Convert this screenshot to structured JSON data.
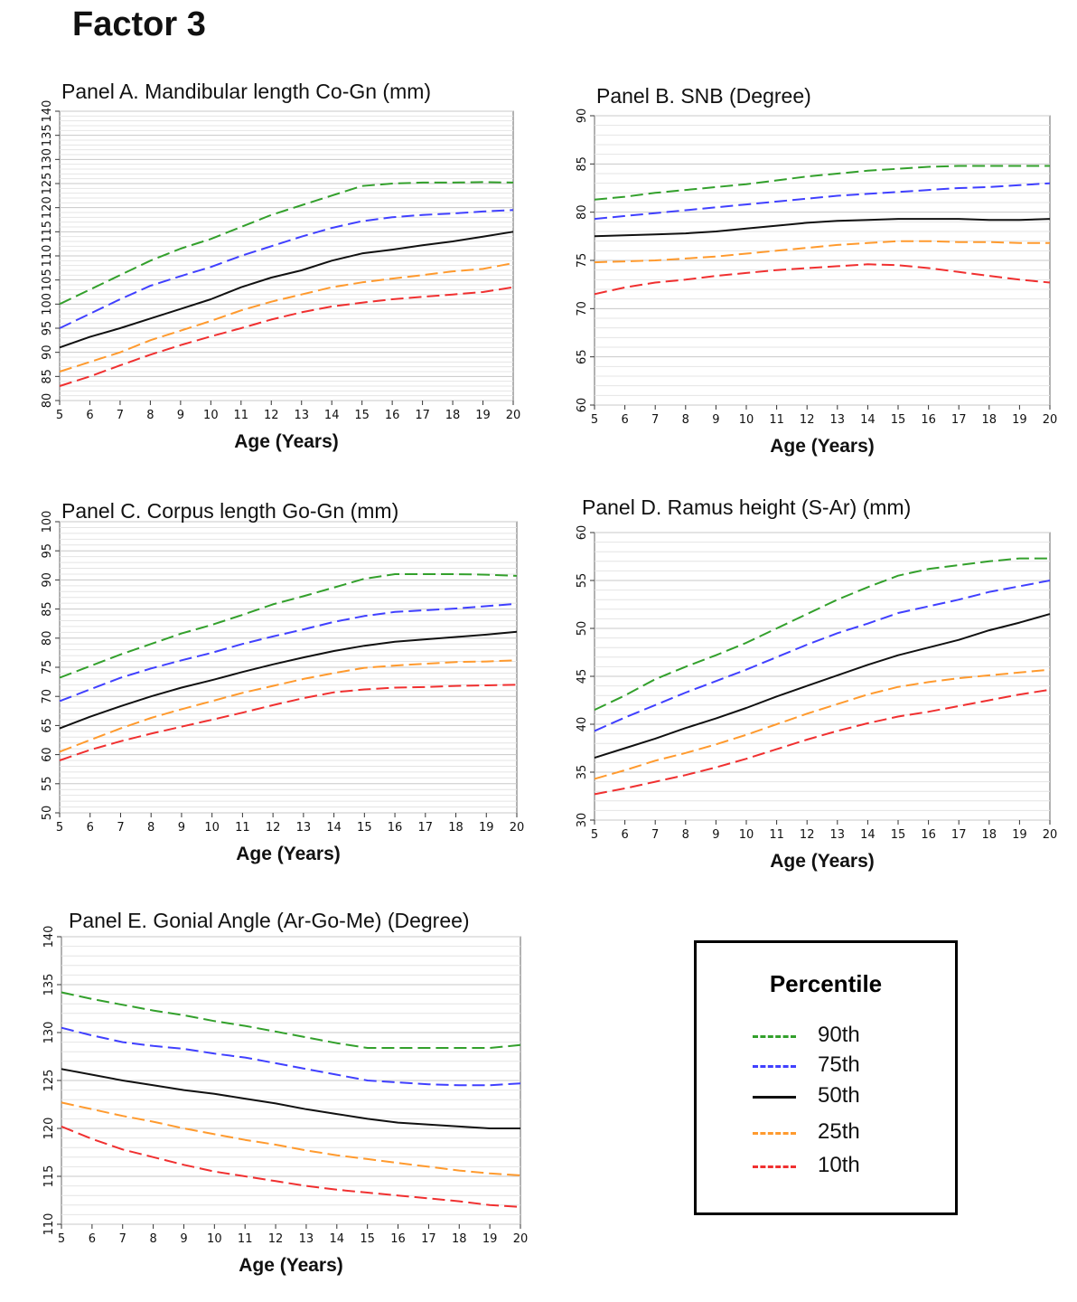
{
  "figure_title": "Factor 3",
  "legend": {
    "title": "Percentile",
    "items": [
      {
        "label": "90th",
        "color": "#33a02c",
        "dash": "dashed"
      },
      {
        "label": "75th",
        "color": "#4040ff",
        "dash": "dashed"
      },
      {
        "label": "50th",
        "color": "#111111",
        "dash": "solid"
      },
      {
        "label": "25th",
        "color": "#ff9a2e",
        "dash": "dashed"
      },
      {
        "label": "10th",
        "color": "#f03030",
        "dash": "dashed"
      }
    ]
  },
  "chart_data": [
    {
      "type": "line",
      "title": "Panel A. Mandibular length Co-Gn (mm)",
      "xlabel": "Age (Years)",
      "ylabel": "",
      "x": [
        5,
        6,
        7,
        8,
        9,
        10,
        11,
        12,
        13,
        14,
        15,
        16,
        17,
        18,
        19,
        20
      ],
      "xlim": [
        5,
        20
      ],
      "ylim": [
        80,
        140
      ],
      "yticks": [
        80,
        85,
        90,
        95,
        100,
        105,
        110,
        115,
        120,
        125,
        130,
        135,
        140
      ],
      "grid": true,
      "series": [
        {
          "name": "90th",
          "values": [
            100,
            103,
            106,
            109,
            111.5,
            113.5,
            116,
            118.5,
            120.5,
            122.5,
            124.5,
            125,
            125.2,
            125.2,
            125.3,
            125.2
          ]
        },
        {
          "name": "75th",
          "values": [
            95,
            98,
            101,
            103.8,
            105.8,
            107.7,
            110,
            112,
            114,
            115.8,
            117.2,
            118,
            118.5,
            118.8,
            119.2,
            119.5
          ]
        },
        {
          "name": "50th",
          "values": [
            91,
            93.2,
            95,
            97,
            99,
            101,
            103.5,
            105.5,
            107,
            109,
            110.5,
            111.3,
            112.2,
            113,
            114,
            115
          ]
        },
        {
          "name": "25th",
          "values": [
            86,
            88,
            90,
            92.5,
            94.5,
            96.5,
            98.7,
            100.5,
            102,
            103.5,
            104.5,
            105.3,
            106,
            106.8,
            107.3,
            108.5
          ]
        },
        {
          "name": "10th",
          "values": [
            83,
            85,
            87.3,
            89.5,
            91.5,
            93.3,
            95,
            96.8,
            98.3,
            99.5,
            100.3,
            101,
            101.5,
            102,
            102.5,
            103.5
          ]
        }
      ]
    },
    {
      "type": "line",
      "title": "Panel B. SNB (Degree)",
      "xlabel": "Age (Years)",
      "ylabel": "",
      "x": [
        5,
        6,
        7,
        8,
        9,
        10,
        11,
        12,
        13,
        14,
        15,
        16,
        17,
        18,
        19,
        20
      ],
      "xlim": [
        5,
        20
      ],
      "ylim": [
        60,
        90
      ],
      "yticks": [
        60,
        65,
        70,
        75,
        80,
        85,
        90
      ],
      "grid": true,
      "series": [
        {
          "name": "90th",
          "values": [
            81.3,
            81.6,
            82,
            82.3,
            82.6,
            82.9,
            83.3,
            83.7,
            84,
            84.3,
            84.5,
            84.7,
            84.8,
            84.8,
            84.8,
            84.8
          ]
        },
        {
          "name": "75th",
          "values": [
            79.3,
            79.6,
            79.9,
            80.2,
            80.5,
            80.8,
            81.1,
            81.4,
            81.7,
            81.9,
            82.1,
            82.3,
            82.5,
            82.6,
            82.8,
            83
          ]
        },
        {
          "name": "50th",
          "values": [
            77.5,
            77.6,
            77.7,
            77.8,
            78,
            78.3,
            78.6,
            78.9,
            79.1,
            79.2,
            79.3,
            79.3,
            79.3,
            79.2,
            79.2,
            79.3
          ]
        },
        {
          "name": "25th",
          "values": [
            74.8,
            74.9,
            75,
            75.2,
            75.4,
            75.7,
            76,
            76.3,
            76.6,
            76.8,
            77,
            77,
            76.9,
            76.9,
            76.8,
            76.8
          ]
        },
        {
          "name": "10th",
          "values": [
            71.5,
            72.2,
            72.7,
            73,
            73.4,
            73.7,
            74,
            74.2,
            74.4,
            74.6,
            74.5,
            74.2,
            73.8,
            73.4,
            73,
            72.7
          ]
        }
      ]
    },
    {
      "type": "line",
      "title": "Panel C. Corpus length Go-Gn (mm)",
      "xlabel": "Age (Years)",
      "ylabel": "",
      "x": [
        5,
        6,
        7,
        8,
        9,
        10,
        11,
        12,
        13,
        14,
        15,
        16,
        17,
        18,
        19,
        20
      ],
      "xlim": [
        5,
        20
      ],
      "ylim": [
        50,
        100
      ],
      "yticks": [
        50,
        55,
        60,
        65,
        70,
        75,
        80,
        85,
        90,
        95,
        100
      ],
      "grid": true,
      "series": [
        {
          "name": "90th",
          "values": [
            73.2,
            75.2,
            77.2,
            79,
            80.8,
            82.3,
            84,
            85.8,
            87.2,
            88.7,
            90.2,
            91,
            91,
            91,
            90.9,
            90.7
          ]
        },
        {
          "name": "75th",
          "values": [
            69.2,
            71.2,
            73.2,
            74.8,
            76.2,
            77.5,
            79,
            80.3,
            81.5,
            82.8,
            83.8,
            84.5,
            84.8,
            85.1,
            85.5,
            85.9
          ]
        },
        {
          "name": "50th",
          "values": [
            64.5,
            66.5,
            68.3,
            70,
            71.5,
            72.8,
            74.2,
            75.5,
            76.7,
            77.8,
            78.7,
            79.4,
            79.8,
            80.2,
            80.6,
            81.1
          ]
        },
        {
          "name": "25th",
          "values": [
            60.5,
            62.5,
            64.5,
            66.3,
            67.8,
            69.2,
            70.6,
            71.8,
            73,
            74,
            74.9,
            75.3,
            75.6,
            75.9,
            76,
            76.2
          ]
        },
        {
          "name": "10th",
          "values": [
            59,
            60.8,
            62.3,
            63.6,
            64.8,
            66,
            67.2,
            68.5,
            69.7,
            70.7,
            71.2,
            71.5,
            71.6,
            71.8,
            71.9,
            72
          ]
        }
      ]
    },
    {
      "type": "line",
      "title": "Panel D. Ramus height (S-Ar) (mm)",
      "xlabel": "Age (Years)",
      "ylabel": "",
      "x": [
        5,
        6,
        7,
        8,
        9,
        10,
        11,
        12,
        13,
        14,
        15,
        16,
        17,
        18,
        19,
        20
      ],
      "xlim": [
        5,
        20
      ],
      "ylim": [
        30,
        60
      ],
      "yticks": [
        30,
        35,
        40,
        45,
        50,
        55,
        60
      ],
      "grid": true,
      "series": [
        {
          "name": "90th",
          "values": [
            41.5,
            43,
            44.7,
            46,
            47.2,
            48.5,
            50,
            51.5,
            53,
            54.3,
            55.5,
            56.2,
            56.6,
            57,
            57.3,
            57.3
          ]
        },
        {
          "name": "75th",
          "values": [
            39.3,
            40.7,
            42,
            43.3,
            44.5,
            45.7,
            47,
            48.3,
            49.5,
            50.5,
            51.6,
            52.3,
            53,
            53.8,
            54.4,
            55
          ]
        },
        {
          "name": "50th",
          "values": [
            36.5,
            37.5,
            38.5,
            39.6,
            40.6,
            41.7,
            42.9,
            44,
            45.1,
            46.2,
            47.2,
            48,
            48.8,
            49.8,
            50.6,
            51.5
          ]
        },
        {
          "name": "25th",
          "values": [
            34.3,
            35.2,
            36.2,
            37,
            37.9,
            38.9,
            40,
            41.1,
            42.1,
            43.1,
            43.9,
            44.4,
            44.8,
            45.1,
            45.4,
            45.7
          ]
        },
        {
          "name": "10th",
          "values": [
            32.7,
            33.3,
            34,
            34.7,
            35.5,
            36.4,
            37.4,
            38.4,
            39.3,
            40.1,
            40.8,
            41.3,
            41.9,
            42.5,
            43.1,
            43.6
          ]
        }
      ]
    },
    {
      "type": "line",
      "title": "Panel E. Gonial Angle (Ar-Go-Me) (Degree)",
      "xlabel": "Age (Years)",
      "ylabel": "",
      "x": [
        5,
        6,
        7,
        8,
        9,
        10,
        11,
        12,
        13,
        14,
        15,
        16,
        17,
        18,
        19,
        20
      ],
      "xlim": [
        5,
        20
      ],
      "ylim": [
        110,
        140
      ],
      "yticks": [
        110,
        115,
        120,
        125,
        130,
        135,
        140
      ],
      "grid": true,
      "series": [
        {
          "name": "90th",
          "values": [
            134.2,
            133.5,
            132.9,
            132.3,
            131.8,
            131.2,
            130.7,
            130.1,
            129.5,
            128.9,
            128.4,
            128.4,
            128.4,
            128.4,
            128.4,
            128.7
          ]
        },
        {
          "name": "75th",
          "values": [
            130.5,
            129.7,
            129,
            128.6,
            128.3,
            127.8,
            127.4,
            126.8,
            126.2,
            125.6,
            125,
            124.8,
            124.6,
            124.5,
            124.5,
            124.7
          ]
        },
        {
          "name": "50th",
          "values": [
            126.2,
            125.6,
            125,
            124.5,
            124,
            123.6,
            123.1,
            122.6,
            122,
            121.5,
            121,
            120.6,
            120.4,
            120.2,
            120,
            120
          ]
        },
        {
          "name": "25th",
          "values": [
            122.7,
            122,
            121.3,
            120.7,
            120,
            119.4,
            118.8,
            118.3,
            117.7,
            117.2,
            116.8,
            116.4,
            116,
            115.6,
            115.3,
            115.1
          ]
        },
        {
          "name": "10th",
          "values": [
            120.2,
            118.9,
            117.8,
            117,
            116.2,
            115.5,
            115,
            114.5,
            114,
            113.6,
            113.3,
            113,
            112.7,
            112.4,
            112,
            111.8
          ]
        }
      ]
    }
  ]
}
